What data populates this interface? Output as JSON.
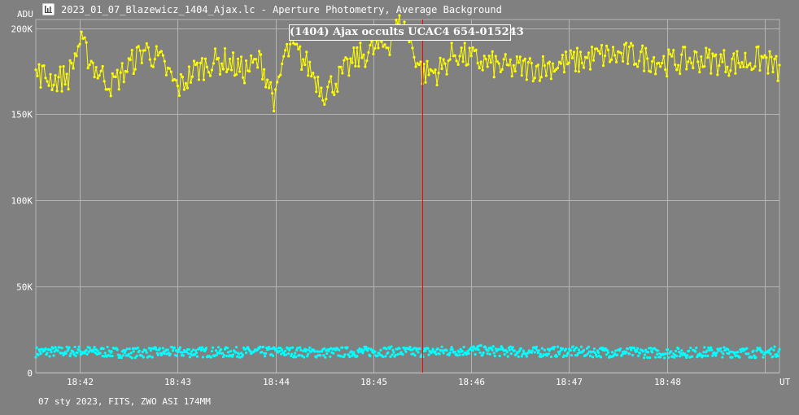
{
  "window": {
    "title": "2023_01_07_Blazewicz_1404_Ajax.lc - Aperture Photometry, Average Background",
    "icon": "chart-icon"
  },
  "footer": {
    "info": "07 sty 2023, FITS, ZWO ASI 174MM"
  },
  "colors": {
    "background": "#808080",
    "grid": "#b4b4b4",
    "target_series": "#ffff00",
    "comparison_series": "#00ffff",
    "event_marker": "#ff0000",
    "text": "#ffffff"
  },
  "chart_data": {
    "type": "scatter",
    "title": "(1404) Ajax occults UCAC4 654-015243",
    "ylabel": "ADU",
    "xlabel": "UT",
    "ylim": [
      0,
      205000
    ],
    "xlim": [
      "18:41:33",
      "18:49:09"
    ],
    "yticks": [
      {
        "value": 0,
        "label": "0"
      },
      {
        "value": 50000,
        "label": "50K"
      },
      {
        "value": 100000,
        "label": "100K"
      },
      {
        "value": 150000,
        "label": "150K"
      },
      {
        "value": 200000,
        "label": "200K"
      }
    ],
    "xticks": [
      {
        "value": "18:42:00",
        "label": "18:42"
      },
      {
        "value": "18:43:00",
        "label": "18:43"
      },
      {
        "value": "18:44:00",
        "label": "18:44"
      },
      {
        "value": "18:45:00",
        "label": "18:45"
      },
      {
        "value": "18:46:00",
        "label": "18:46"
      },
      {
        "value": "18:47:00",
        "label": "18:47"
      },
      {
        "value": "18:48:00",
        "label": "18:48"
      },
      {
        "value": "18:49:00",
        "label": "18:49"
      }
    ],
    "grid": true,
    "legend": "none",
    "event_marker_time": "18:45:30",
    "series": [
      {
        "role": "target",
        "color": "#ffff00",
        "connected": true,
        "x": [
          "18:41:33",
          "18:41:45",
          "18:41:53",
          "18:42:00",
          "18:42:10",
          "18:42:20",
          "18:42:30",
          "18:42:40",
          "18:42:50",
          "18:43:00",
          "18:43:10",
          "18:43:20",
          "18:43:30",
          "18:43:40",
          "18:43:46",
          "18:43:51",
          "18:44:00",
          "18:44:05",
          "18:44:10",
          "18:44:20",
          "18:44:30",
          "18:44:40",
          "18:44:50",
          "18:45:00",
          "18:45:10",
          "18:45:15",
          "18:45:20",
          "18:45:30",
          "18:45:40",
          "18:45:50",
          "18:46:00",
          "18:46:20",
          "18:46:40",
          "18:47:00",
          "18:47:20",
          "18:47:40",
          "18:48:00",
          "18:48:20",
          "18:48:40",
          "18:49:00",
          "18:49:09"
        ],
        "values": [
          174000,
          170000,
          172000,
          192000,
          176000,
          167000,
          178000,
          188000,
          180000,
          165000,
          175000,
          180000,
          181000,
          175000,
          178000,
          181000,
          157000,
          183000,
          189000,
          178000,
          163000,
          172000,
          183000,
          187000,
          192000,
          202000,
          198000,
          174000,
          175000,
          186000,
          182000,
          177000,
          177000,
          180000,
          184000,
          184000,
          180000,
          182000,
          180000,
          182000,
          175000
        ]
      },
      {
        "role": "comparison",
        "color": "#00ffff",
        "connected": false,
        "x": [
          "18:41:33",
          "18:42:00",
          "18:42:30",
          "18:43:00",
          "18:43:30",
          "18:44:00",
          "18:44:30",
          "18:45:00",
          "18:45:30",
          "18:46:00",
          "18:46:30",
          "18:47:00",
          "18:47:30",
          "18:48:00",
          "18:48:30",
          "18:49:00",
          "18:49:09"
        ],
        "values": [
          12000,
          12500,
          11500,
          12000,
          11800,
          12200,
          11600,
          12300,
          12000,
          13000,
          12000,
          12200,
          11800,
          11500,
          12000,
          11500,
          12500
        ]
      }
    ]
  }
}
